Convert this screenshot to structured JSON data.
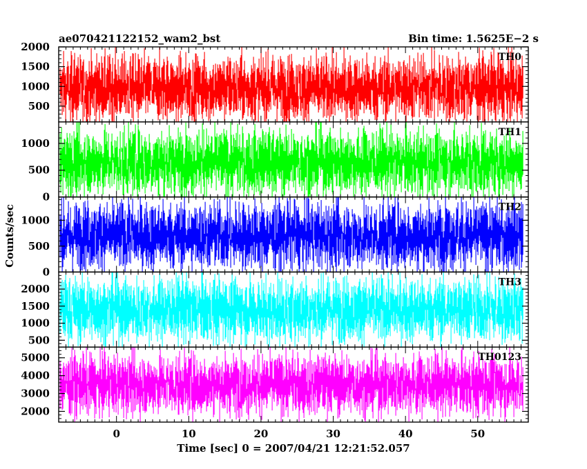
{
  "title_left": "ae070421122152_wam2_bst",
  "title_right": "Bin time: 1.5625E−2 s",
  "xlabel": "Time [sec] 0 = 2007/04/21 12:21:52.057",
  "ylabel": "Counts/sec",
  "chart_data": {
    "type": "line",
    "grid": false,
    "x_range": [
      -8,
      57
    ],
    "x_ticks": [
      0,
      10,
      20,
      30,
      40,
      50
    ],
    "x_tick_labels": [
      "0",
      "10",
      "20",
      "30",
      "40",
      "50"
    ],
    "data_x_range": [
      -7.8,
      56.2
    ],
    "panels": [
      {
        "label": "TH0",
        "color": "#ff0000",
        "ylim": [
          100,
          2000
        ],
        "y_ticks": [
          500,
          1000,
          1500,
          2000
        ],
        "y_tick_labels": [
          "500",
          "1000",
          "1500",
          "2000"
        ],
        "mean": 950,
        "spread": 420
      },
      {
        "label": "TH1",
        "color": "#00ff00",
        "ylim": [
          0,
          1400
        ],
        "y_ticks": [
          0,
          500,
          1000
        ],
        "y_tick_labels": [
          "0",
          "500",
          "1000"
        ],
        "mean": 650,
        "spread": 310
      },
      {
        "label": "TH2",
        "color": "#0000ff",
        "ylim": [
          0,
          1450
        ],
        "y_ticks": [
          0,
          500,
          1000
        ],
        "y_tick_labels": [
          "0",
          "500",
          "1000"
        ],
        "mean": 700,
        "spread": 330
      },
      {
        "label": "TH3",
        "color": "#00ffff",
        "ylim": [
          300,
          2500
        ],
        "y_ticks": [
          500,
          1000,
          1500,
          2000
        ],
        "y_tick_labels": [
          "500",
          "1000",
          "1500",
          "2000"
        ],
        "mean": 1400,
        "spread": 480
      },
      {
        "label": "TH0123",
        "color": "#ff00ff",
        "ylim": [
          1400,
          5600
        ],
        "y_ticks": [
          2000,
          3000,
          4000,
          5000
        ],
        "y_tick_labels": [
          "2000",
          "3000",
          "4000",
          "5000"
        ],
        "mean": 3500,
        "spread": 850
      }
    ]
  }
}
